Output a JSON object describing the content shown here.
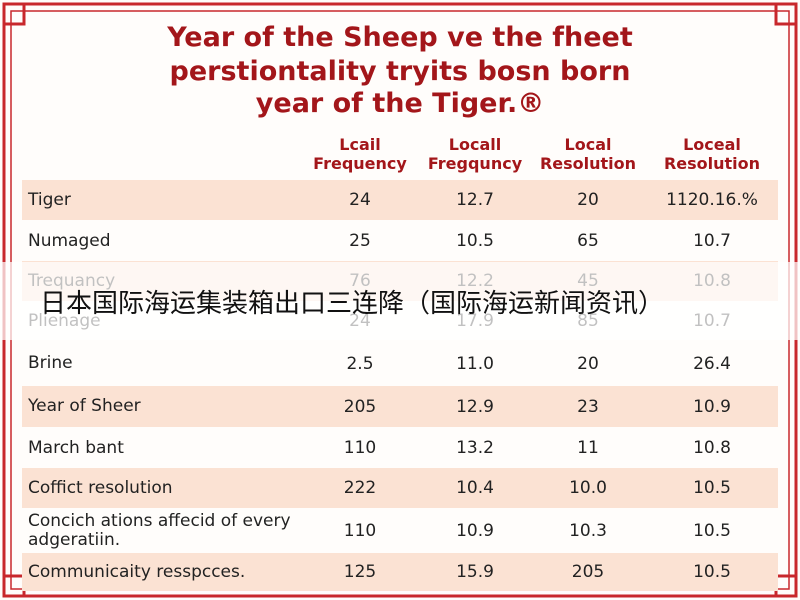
{
  "title": [
    "Year of the Sheep ve the fheet",
    "perstiontality tryits bosn born",
    "year of the Tiger.®"
  ],
  "table": {
    "headers": [
      [
        "Lcail",
        "Frequency"
      ],
      [
        "Locall",
        "Fregquncy"
      ],
      [
        "Local",
        "Resolution"
      ],
      [
        "Loceal",
        "Resolution"
      ]
    ],
    "rows": [
      [
        "Tiger",
        "24",
        "12.7",
        "20",
        "1120.16.%"
      ],
      [
        "Numaged",
        "25",
        "10.5",
        "65",
        "10.7"
      ],
      [
        "Trequancy",
        "76",
        "12.2",
        "45",
        "10.8"
      ],
      [
        "Plienage",
        "24",
        "17.9",
        "85",
        "10.7"
      ],
      [
        "Brine",
        "2.5",
        "11.0",
        "20",
        "26.4"
      ],
      [
        "Year of Sheer",
        "205",
        "12.9",
        "23",
        "10.9"
      ],
      [
        "March bant",
        "110",
        "13.2",
        "11",
        "10.8"
      ],
      [
        "Coffict resolution",
        "222",
        "10.4",
        "10.0",
        "10.5"
      ],
      [
        "Concich ations affecid of every adgeratiin.",
        "110",
        "10.9",
        "10.3",
        "10.5"
      ],
      [
        "Communicaity resspcces.",
        "125",
        "15.9",
        "205",
        "10.5"
      ]
    ]
  },
  "banner": "日本国际海运集装箱出口三连降（国际海运新闻资讯）"
}
